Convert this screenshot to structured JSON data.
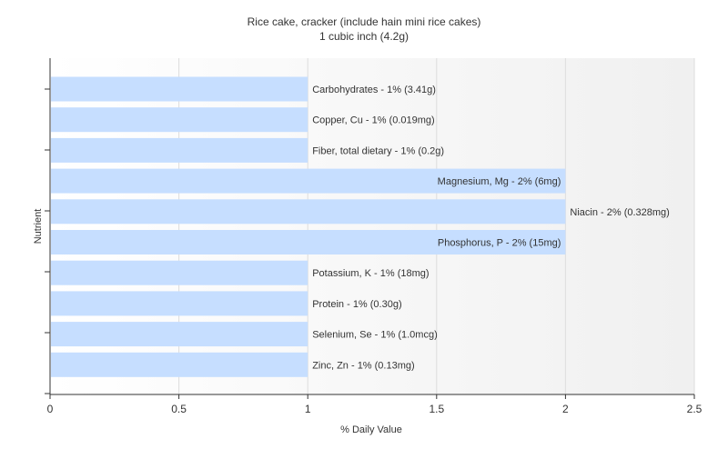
{
  "chart_data": {
    "type": "bar",
    "orientation": "horizontal",
    "title": "Rice cake, cracker (include hain mini rice cakes)",
    "subtitle": "1 cubic inch (4.2g)",
    "xlabel": "% Daily Value",
    "ylabel": "Nutrient",
    "xlim": [
      0,
      2.5
    ],
    "xticks": [
      "0",
      "0.5",
      "1",
      "1.5",
      "2",
      "2.5"
    ],
    "grid": true,
    "bar_color": "#c6deff",
    "categories": [
      "Carbohydrates",
      "Copper, Cu",
      "Fiber, total dietary",
      "Magnesium, Mg",
      "Niacin",
      "Phosphorus, P",
      "Potassium, K",
      "Protein",
      "Selenium, Se",
      "Zinc, Zn"
    ],
    "values": [
      1,
      1,
      1,
      2,
      2,
      2,
      1,
      1,
      1,
      1
    ],
    "labels": [
      "Carbohydrates - 1% (3.41g)",
      "Copper, Cu - 1% (0.019mg)",
      "Fiber, total dietary - 1% (0.2g)",
      "Magnesium, Mg - 2% (6mg)",
      "Niacin - 2% (0.328mg)",
      "Phosphorus, P - 2% (15mg)",
      "Potassium, K - 1% (18mg)",
      "Protein - 1% (0.30g)",
      "Selenium, Se - 1% (1.0mcg)",
      "Zinc, Zn - 1% (0.13mg)"
    ],
    "label_inside": [
      false,
      false,
      false,
      true,
      false,
      true,
      false,
      false,
      false,
      false
    ]
  }
}
